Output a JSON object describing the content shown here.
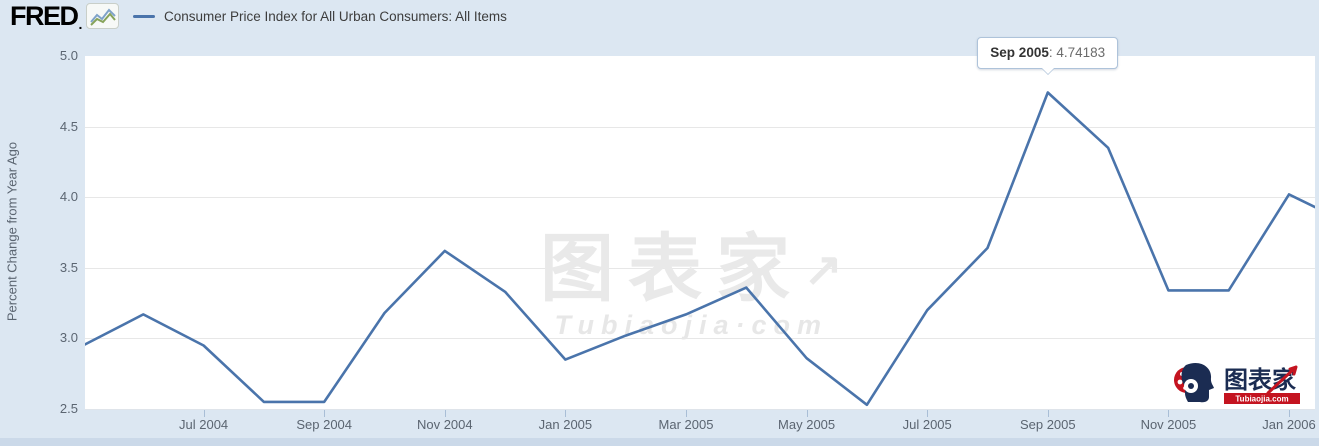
{
  "header": {
    "logo_text": "FRED",
    "logo_suffix": ".",
    "legend_label": "Consumer Price Index for All Urban Consumers: All Items"
  },
  "tooltip": {
    "date": "Sep 2005",
    "separator": ": ",
    "value": "4.74183"
  },
  "watermark": {
    "center_text": "图表家",
    "center_arrow": "↗",
    "center_sub": "Tubiaojia·com",
    "corner_text": "图表家",
    "corner_sub": "Tubiaojia.com"
  },
  "colors": {
    "line": "#4a74ab",
    "background": "#dce7f2",
    "plot_bg": "#ffffff",
    "grid": "#e7e7e7",
    "corner_navy": "#1b2c52",
    "corner_red": "#c41420"
  },
  "chart_data": {
    "type": "line",
    "title": "Consumer Price Index for All Urban Consumers: All Items",
    "ylabel": "Percent Change from Year Ago",
    "xlabel": "",
    "ylim": [
      2.5,
      5.0
    ],
    "yticks": [
      2.5,
      3.0,
      3.5,
      4.0,
      4.5,
      5.0
    ],
    "grid": true,
    "legend_position": "top-left",
    "x": [
      "May 2004",
      "Jun 2004",
      "Jul 2004",
      "Aug 2004",
      "Sep 2004",
      "Oct 2004",
      "Nov 2004",
      "Dec 2004",
      "Jan 2005",
      "Feb 2005",
      "Mar 2005",
      "Apr 2005",
      "May 2005",
      "Jun 2005",
      "Jul 2005",
      "Aug 2005",
      "Sep 2005",
      "Oct 2005",
      "Nov 2005",
      "Dec 2005",
      "Jan 2006"
    ],
    "series": [
      {
        "name": "Consumer Price Index for All Urban Consumers: All Items",
        "values": [
          2.95,
          3.17,
          2.95,
          2.55,
          2.55,
          3.18,
          3.62,
          3.33,
          2.85,
          3.02,
          3.17,
          3.36,
          2.86,
          2.53,
          3.2,
          3.64,
          4.74183,
          4.35,
          3.34,
          3.34,
          4.02
        ]
      }
    ],
    "edge_clip_value": 3.93,
    "x_ticks": [
      {
        "label": "Jul 2004",
        "month_index": 2
      },
      {
        "label": "Sep 2004",
        "month_index": 4
      },
      {
        "label": "Nov 2004",
        "month_index": 6
      },
      {
        "label": "Jan 2005",
        "month_index": 8
      },
      {
        "label": "Mar 2005",
        "month_index": 10
      },
      {
        "label": "May 2005",
        "month_index": 12
      },
      {
        "label": "Jul 2005",
        "month_index": 14
      },
      {
        "label": "Sep 2005",
        "month_index": 16
      },
      {
        "label": "Nov 2005",
        "month_index": 18
      },
      {
        "label": "Jan 2006",
        "month_index": 20
      }
    ],
    "tooltip_point_index": 16
  }
}
